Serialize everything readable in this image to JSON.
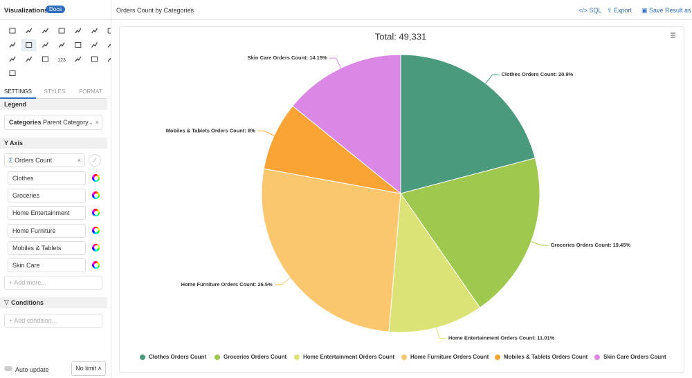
{
  "sidebar": {
    "title": "Visualizations",
    "badge": "Docs",
    "icon_text": "123",
    "tabs": [
      "SETTINGS",
      "STYLES",
      "FORMAT"
    ],
    "legend": {
      "heading": "Legend",
      "field_bold": "Categories",
      "field": "Parent Category"
    },
    "y_axis": {
      "heading": "Y Axis",
      "sigma": "Σ",
      "measure": "Orders Count",
      "items": [
        "Clothes",
        "Groceries",
        "Home Entertainment",
        "Home Furniture",
        "Mobiles & Tablets",
        "Skin Care"
      ],
      "add": "+ Add more..."
    },
    "conditions": {
      "heading": "Conditions",
      "add": "+ Add condition..."
    },
    "auto_update": "Auto update",
    "limit": "No limit"
  },
  "header": {
    "title": "Orders Count by Categories",
    "actions": [
      "SQL",
      "Export",
      "Save Result as"
    ]
  },
  "chart_data": {
    "type": "pie",
    "title": "Total: 49,331",
    "categories": [
      "Clothes Orders Count",
      "Groceries Orders Count",
      "Home Entertainment Orders Count",
      "Home Furniture Orders Count",
      "Mobiles & Tablets Orders Count",
      "Skin Care Orders Count"
    ],
    "values": [
      20.9,
      19.45,
      11.01,
      26.5,
      8,
      14.15
    ],
    "value_labels": [
      "Clothes Orders Count: 20.9%",
      "Groceries Orders Count: 19.45%",
      "Home Entertainment Orders Count: 11.01%",
      "Home Furniture Orders Count: 26.5%",
      "Mobiles & Tablets Orders Count: 8%",
      "Skin Care Orders Count: 14.15%"
    ],
    "colors": [
      "#4a9a7e",
      "#9fc84e",
      "#dce376",
      "#fbc76e",
      "#f9a435",
      "#db87e5"
    ]
  }
}
